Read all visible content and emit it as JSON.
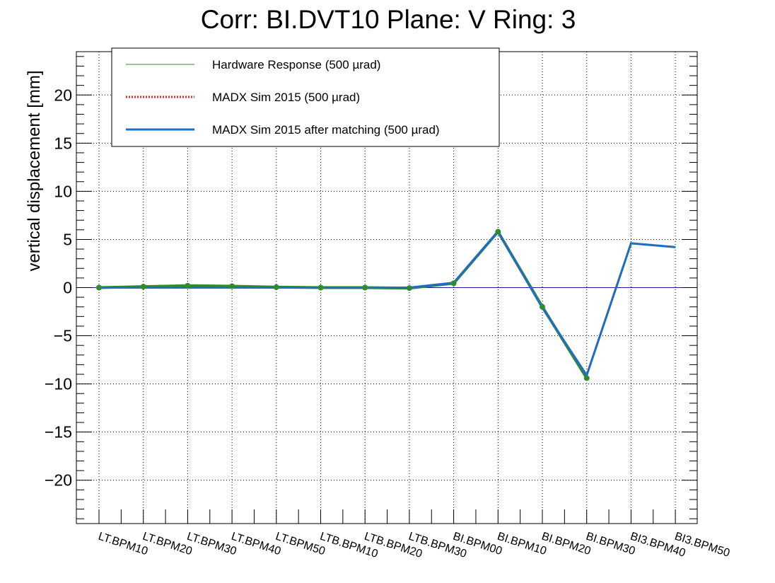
{
  "chart_data": {
    "type": "line",
    "title": "Corr: BI.DVT10 Plane: V Ring: 3",
    "ylabel": "vertical displacement [mm]",
    "xlabel": "",
    "ylim": [
      -24.5,
      24.5
    ],
    "yticks": [
      -20,
      -15,
      -10,
      -5,
      0,
      5,
      10,
      15,
      20
    ],
    "ytick_labels": [
      "−20",
      "−15",
      "−10",
      "−5",
      "0",
      "5",
      "10",
      "15",
      "20"
    ],
    "grid": true,
    "legend_position": "top-left",
    "categories": [
      "LT.BPM10",
      "LT.BPM20",
      "LT.BPM30",
      "LT.BPM40",
      "LT.BPM50",
      "LTB.BPM10",
      "LTB.BPM20",
      "LTB.BPM30",
      "BI.BPM00",
      "BI.BPM10",
      "BI.BPM20",
      "BI.BPM30",
      "BI3.BPM40",
      "BI3.BPM50"
    ],
    "series": [
      {
        "name": "Hardware Response (500 µrad)",
        "color": "#2e8b2e",
        "style": "solid-thin-markers",
        "values": [
          0.0,
          0.1,
          0.2,
          0.15,
          0.05,
          0.0,
          0.0,
          -0.05,
          0.45,
          5.8,
          -2.0,
          -9.4,
          null,
          null
        ]
      },
      {
        "name": "MADX Sim 2015 (500 µrad)",
        "color": "#c0302a",
        "style": "dotted",
        "values": [
          0.0,
          0.0,
          0.0,
          0.0,
          0.0,
          0.0,
          0.0,
          0.0,
          0.5,
          5.8,
          -2.1,
          -9.1,
          4.6,
          4.2
        ]
      },
      {
        "name": "MADX Sim 2015 after matching (500 µrad)",
        "color": "#1f6fc0",
        "style": "solid-thick",
        "values": [
          0.0,
          0.0,
          0.0,
          0.0,
          0.0,
          0.0,
          0.0,
          0.0,
          0.5,
          5.8,
          -2.1,
          -9.1,
          4.6,
          4.2
        ]
      }
    ],
    "reference_line": {
      "y": 0,
      "color": "#1a1aa0"
    }
  }
}
